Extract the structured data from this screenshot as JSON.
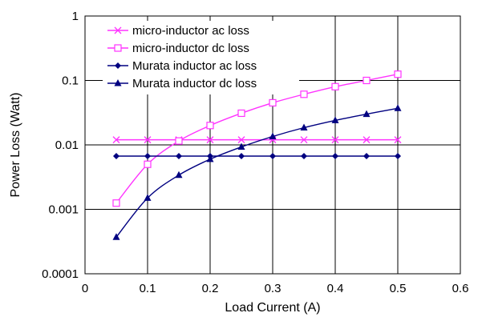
{
  "chart_data": {
    "type": "line",
    "xlabel": "Load Current (A)",
    "ylabel": "Power Loss (Watt)",
    "xlim": [
      0,
      0.6
    ],
    "ylim": [
      0.0001,
      1
    ],
    "yscale": "log",
    "grid": true,
    "legend_position": "top-left",
    "x_ticks": [
      "0",
      "0.1",
      "0.2",
      "0.3",
      "0.4",
      "0.5",
      "0.6"
    ],
    "y_ticks": [
      "0.0001",
      "0.001",
      "0.01",
      "0.1",
      "1"
    ],
    "x": [
      0.05,
      0.1,
      0.15,
      0.2,
      0.25,
      0.3,
      0.35,
      0.4,
      0.45,
      0.5
    ],
    "series": [
      {
        "name": "micro-inductor ac loss",
        "color": "#ff33ff",
        "marker": "x",
        "values": [
          0.012,
          0.012,
          0.012,
          0.012,
          0.012,
          0.012,
          0.012,
          0.012,
          0.012,
          0.012
        ]
      },
      {
        "name": "micro-inductor dc loss",
        "color": "#ff33ff",
        "marker": "open-square",
        "values": [
          0.00125,
          0.005,
          0.0115,
          0.02,
          0.031,
          0.045,
          0.061,
          0.08,
          0.1,
          0.125
        ]
      },
      {
        "name": "Murata inductor ac loss",
        "color": "#000080",
        "marker": "diamond",
        "values": [
          0.0067,
          0.0067,
          0.0067,
          0.0067,
          0.0067,
          0.0067,
          0.0067,
          0.0067,
          0.0067,
          0.0067
        ]
      },
      {
        "name": "Murata inductor dc loss",
        "color": "#000080",
        "marker": "triangle",
        "values": [
          0.00037,
          0.0015,
          0.0034,
          0.006,
          0.0093,
          0.0135,
          0.0185,
          0.024,
          0.03,
          0.037
        ]
      }
    ]
  }
}
